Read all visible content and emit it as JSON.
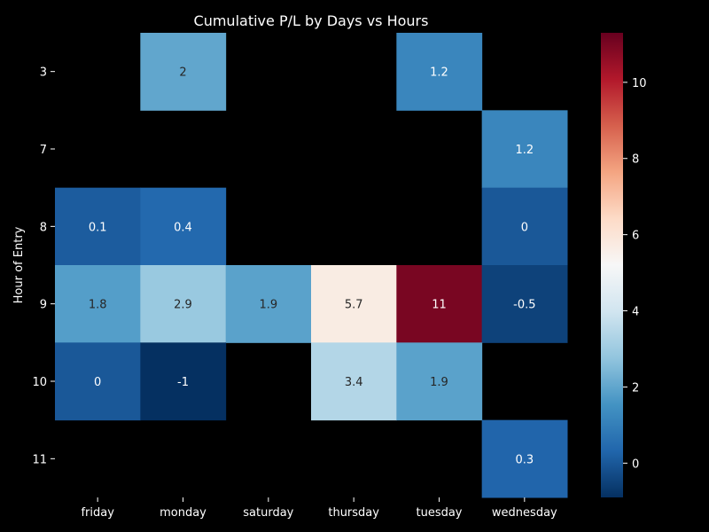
{
  "chart_data": {
    "type": "heatmap",
    "title": "Cumulative P/L by Days vs Hours",
    "xlabel": "",
    "ylabel": "Hour of Entry",
    "x_categories": [
      "friday",
      "monday",
      "saturday",
      "thursday",
      "tuesday",
      "wednesday"
    ],
    "y_categories": [
      "3",
      "7",
      "8",
      "9",
      "10",
      "11"
    ],
    "values": [
      [
        null,
        2,
        null,
        null,
        1.2,
        null
      ],
      [
        null,
        null,
        null,
        null,
        null,
        1.2
      ],
      [
        0.1,
        0.4,
        null,
        null,
        null,
        0
      ],
      [
        1.8,
        2.9,
        1.9,
        5.7,
        11,
        -0.5
      ],
      [
        0,
        -1,
        null,
        3.4,
        1.9,
        null
      ],
      [
        null,
        null,
        null,
        null,
        null,
        0.3
      ]
    ],
    "colormap": "RdBu_r",
    "vmin": -0.9,
    "vmax": 11.3,
    "colorbar_ticks": [
      0,
      2,
      4,
      6,
      8,
      10
    ],
    "missing_color": "#000000",
    "annotation_colors": {
      "on_light": "#262626",
      "on_dark": "#ffffff"
    }
  }
}
